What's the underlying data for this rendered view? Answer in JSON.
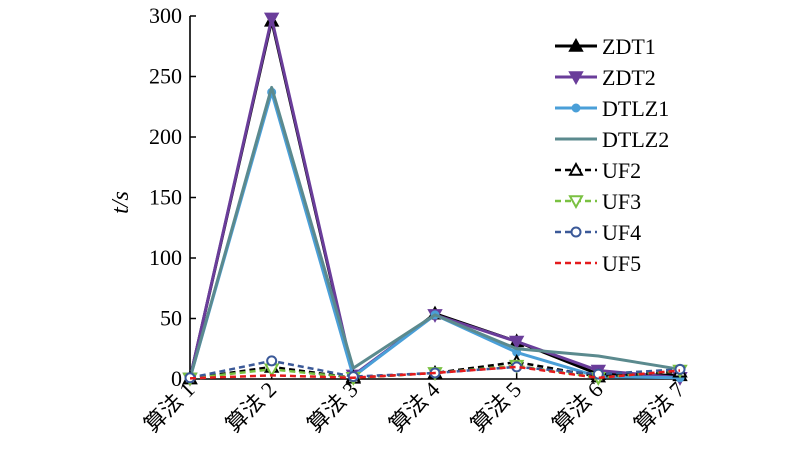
{
  "chart_data": {
    "type": "line",
    "title": "",
    "xlabel": "",
    "ylabel": "t/s",
    "ylim": [
      0,
      300
    ],
    "yticks": [
      0,
      50,
      100,
      150,
      200,
      250,
      300
    ],
    "categories": [
      "算法 1",
      "算法 2",
      "算法 3",
      "算法 4",
      "算法 5",
      "算法 6",
      "算法 7"
    ],
    "grid": false,
    "legend_position": "top-right",
    "series": [
      {
        "name": "ZDT1",
        "values": [
          0.5,
          296,
          2,
          54,
          31,
          4,
          3
        ],
        "color": "#000000",
        "dash": "solid",
        "marker": "triangle-up-filled"
      },
      {
        "name": "ZDT2",
        "values": [
          0.5,
          298,
          3,
          53,
          31,
          7,
          1
        ],
        "color": "#6a3d9a",
        "dash": "solid",
        "marker": "triangle-down-filled"
      },
      {
        "name": "DTLZ1",
        "values": [
          0.5,
          237,
          2,
          53,
          22,
          2,
          1
        ],
        "color": "#4a9fd8",
        "dash": "solid",
        "marker": "circle-filled"
      },
      {
        "name": "DTLZ2",
        "values": [
          0.5,
          241,
          9,
          53,
          25,
          19,
          8
        ],
        "color": "#5b8a8e",
        "dash": "solid",
        "marker": "none"
      },
      {
        "name": "UF2",
        "values": [
          0.5,
          10,
          1,
          5,
          14,
          2,
          6
        ],
        "color": "#000000",
        "dash": "dash",
        "marker": "triangle-up-open"
      },
      {
        "name": "UF3",
        "values": [
          0.5,
          8,
          1,
          5,
          11,
          1,
          7
        ],
        "color": "#7ac142",
        "dash": "dash",
        "marker": "triangle-down-open"
      },
      {
        "name": "UF4",
        "values": [
          1,
          15,
          2,
          5,
          10,
          4,
          8
        ],
        "color": "#3b5998",
        "dash": "dash",
        "marker": "circle-open"
      },
      {
        "name": "UF5",
        "values": [
          0.5,
          3,
          1,
          5,
          10,
          1,
          7
        ],
        "color": "#e41a1c",
        "dash": "dash",
        "marker": "none"
      }
    ]
  }
}
